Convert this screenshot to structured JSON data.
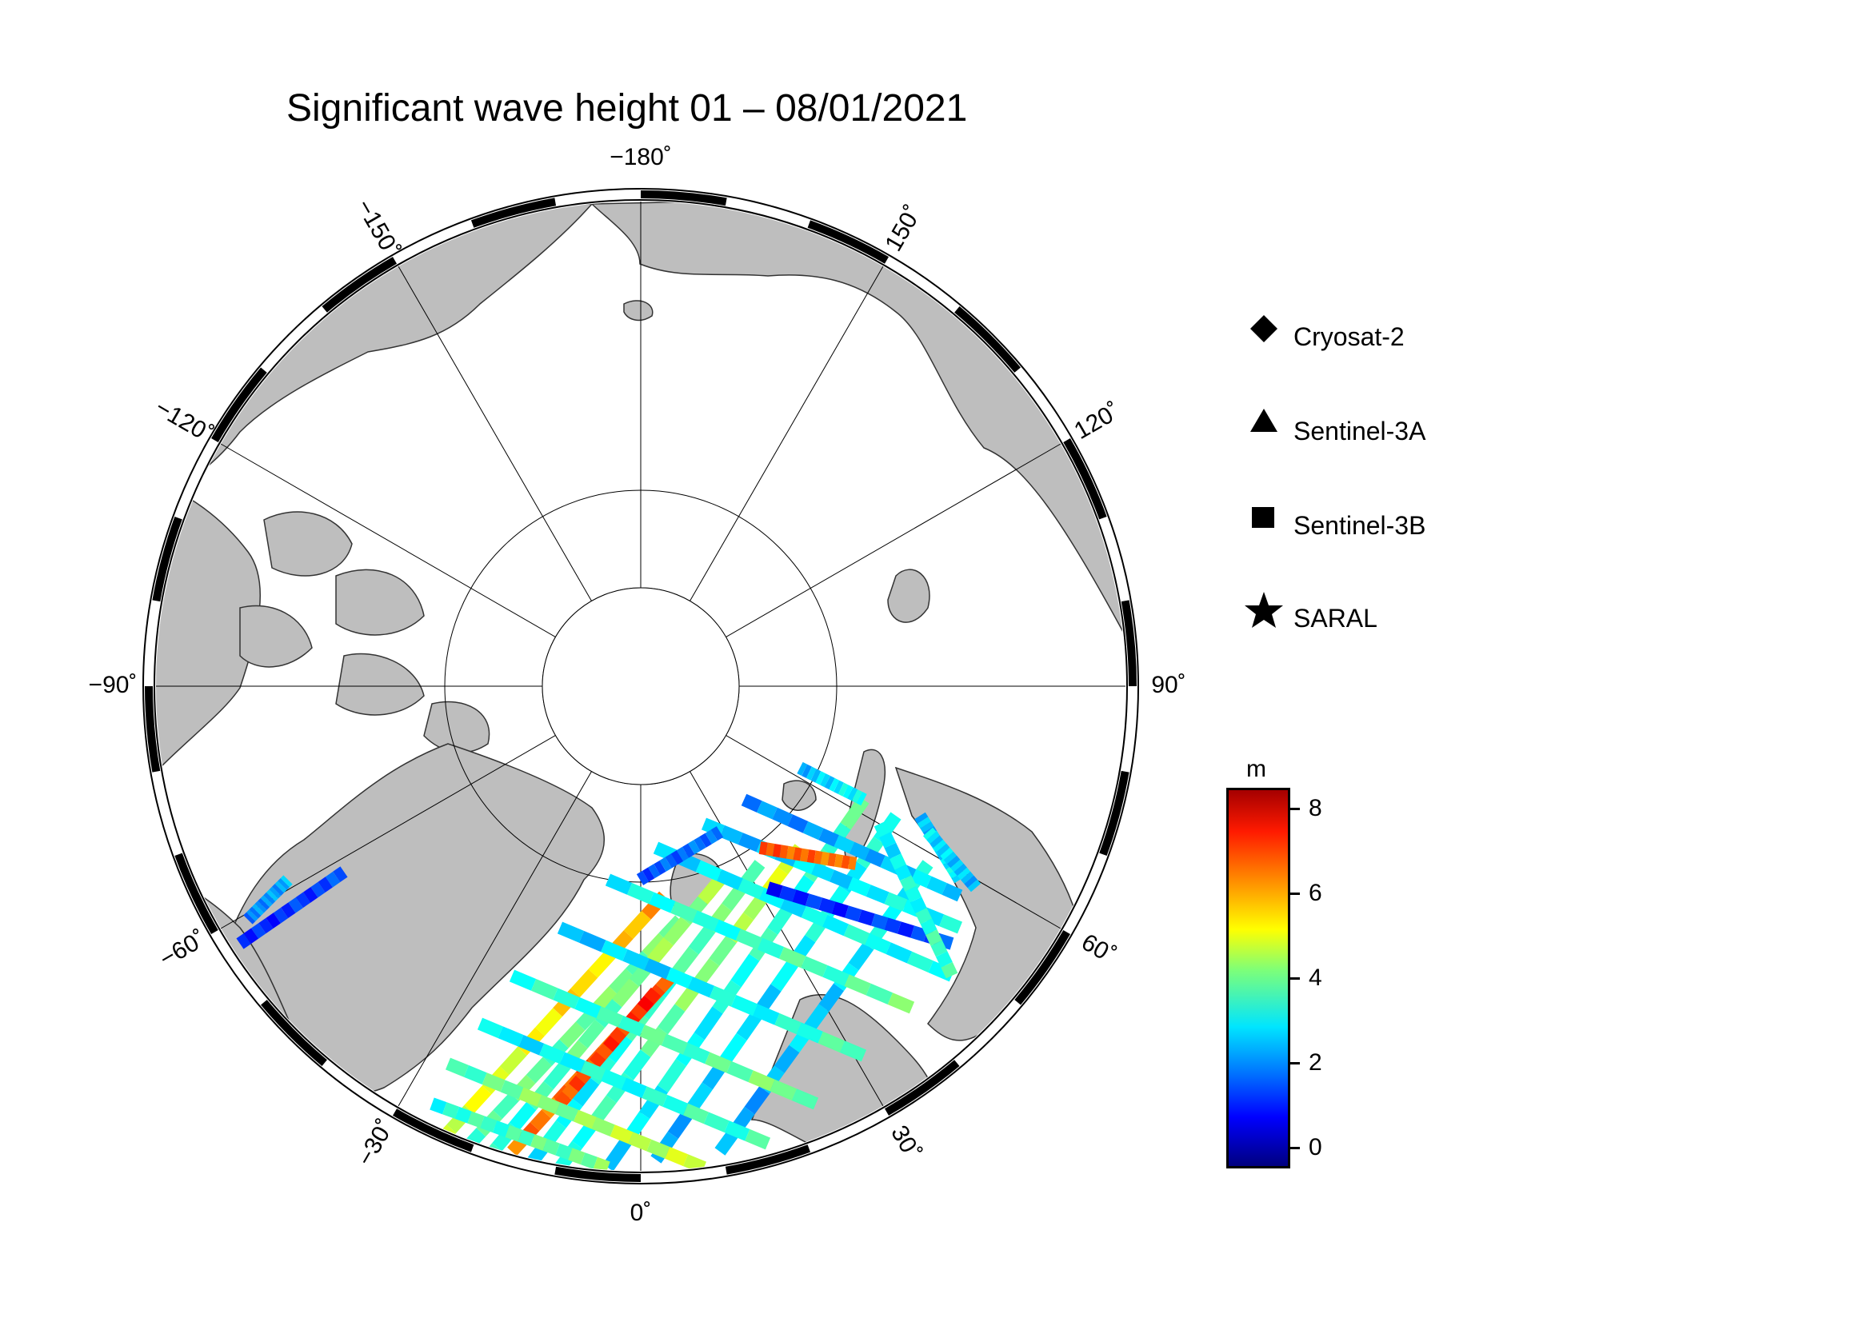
{
  "title": "Significant wave height 01 – 08/01/2021",
  "map": {
    "projection": "north-polar-stereographic",
    "longitude_labels": [
      {
        "text": "−180˚",
        "lon": 180
      },
      {
        "text": "150˚",
        "lon": 150
      },
      {
        "text": "120˚",
        "lon": 120
      },
      {
        "text": "90˚",
        "lon": 90
      },
      {
        "text": "60˚",
        "lon": 60
      },
      {
        "text": "30˚",
        "lon": 30
      },
      {
        "text": "0˚",
        "lon": 0
      },
      {
        "text": "−30˚",
        "lon": -30
      },
      {
        "text": "−60˚",
        "lon": -60
      },
      {
        "text": "−90˚",
        "lon": -90
      },
      {
        "text": "−120˚",
        "lon": -120
      },
      {
        "text": "−150˚",
        "lon": -150
      }
    ],
    "colors": {
      "land": "#bebebe",
      "ocean": "#ffffff",
      "frame": "#000000"
    }
  },
  "legend": [
    {
      "label": "Cryosat-2",
      "symbol": "diamond"
    },
    {
      "label": "Sentinel-3A",
      "symbol": "triangle"
    },
    {
      "label": "Sentinel-3B",
      "symbol": "square"
    },
    {
      "label": "SARAL",
      "symbol": "star"
    }
  ],
  "colorbar": {
    "unit": "m",
    "range": [
      -0.5,
      8.5
    ],
    "ticks": [
      "8",
      "6",
      "4",
      "2",
      "0"
    ],
    "colormap": "jet"
  }
}
